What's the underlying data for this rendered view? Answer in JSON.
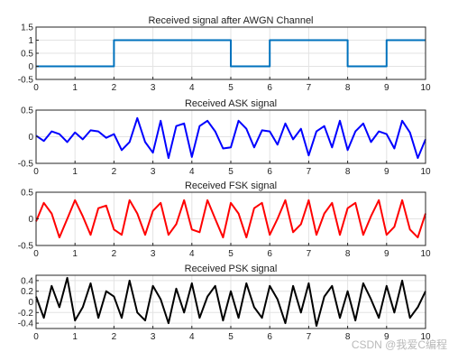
{
  "watermark": "CSDN @我爱C编程",
  "chart_data": [
    {
      "type": "line",
      "title": "Received signal after AWGN Channel",
      "xlim": [
        0,
        10
      ],
      "ylim": [
        -0.5,
        1.5
      ],
      "xticks": [
        "0",
        "1",
        "2",
        "3",
        "4",
        "5",
        "6",
        "7",
        "8",
        "9",
        "10"
      ],
      "yticks": [
        "-0.5",
        "0",
        "0.5",
        "1",
        "1.5"
      ],
      "grid": true,
      "series": [
        {
          "color": "#0072BD",
          "x": [
            0,
            2,
            2,
            5,
            5,
            6,
            6,
            8,
            8,
            9,
            9,
            10
          ],
          "y": [
            0,
            0,
            1,
            1,
            0,
            0,
            1,
            1,
            0,
            0,
            1,
            1
          ]
        }
      ]
    },
    {
      "type": "line",
      "title": "Received ASK signal",
      "xlim": [
        0,
        10
      ],
      "ylim": [
        -0.5,
        0.5
      ],
      "xticks": [
        "0",
        "1",
        "2",
        "3",
        "4",
        "5",
        "6",
        "7",
        "8",
        "9",
        "10"
      ],
      "yticks": [
        "-0.5",
        "0",
        "0.5"
      ],
      "grid": true,
      "series": [
        {
          "color": "#0000FF",
          "x": [
            0,
            0.2,
            0.4,
            0.6,
            0.8,
            1,
            1.2,
            1.4,
            1.6,
            1.8,
            2,
            2.2,
            2.4,
            2.6,
            2.8,
            3,
            3.2,
            3.4,
            3.6,
            3.8,
            4,
            4.2,
            4.4,
            4.6,
            4.8,
            5,
            5.2,
            5.4,
            5.6,
            5.8,
            6,
            6.2,
            6.4,
            6.6,
            6.8,
            7,
            7.2,
            7.4,
            7.6,
            7.8,
            8,
            8.2,
            8.4,
            8.6,
            8.8,
            9,
            9.2,
            9.4,
            9.6,
            9.8,
            10
          ],
          "y": [
            0.02,
            -0.08,
            0.1,
            0.05,
            -0.1,
            0.08,
            -0.05,
            0.12,
            0.1,
            -0.02,
            0.05,
            -0.25,
            -0.1,
            0.35,
            -0.1,
            -0.3,
            0.3,
            -0.4,
            0.2,
            0.25,
            -0.38,
            0.2,
            0.3,
            0.1,
            -0.22,
            -0.2,
            0.3,
            0.15,
            -0.2,
            0.12,
            0.1,
            -0.15,
            0.25,
            -0.05,
            0.15,
            -0.35,
            0.1,
            0.2,
            -0.2,
            0.3,
            -0.25,
            0.1,
            0.25,
            -0.1,
            0.1,
            0.05,
            -0.22,
            0.3,
            0.08,
            -0.4,
            -0.05
          ]
        }
      ]
    },
    {
      "type": "line",
      "title": "Received FSK signal",
      "xlim": [
        0,
        10
      ],
      "ylim": [
        -0.5,
        0.5
      ],
      "xticks": [
        "0",
        "1",
        "2",
        "3",
        "4",
        "5",
        "6",
        "7",
        "8",
        "9",
        "10"
      ],
      "yticks": [
        "-0.5",
        "0",
        "0.5"
      ],
      "grid": true,
      "series": [
        {
          "color": "#FF0000",
          "x": [
            0,
            0.2,
            0.4,
            0.6,
            0.8,
            1,
            1.2,
            1.4,
            1.6,
            1.8,
            2,
            2.2,
            2.4,
            2.6,
            2.8,
            3,
            3.2,
            3.4,
            3.6,
            3.8,
            4,
            4.2,
            4.4,
            4.6,
            4.8,
            5,
            5.2,
            5.4,
            5.6,
            5.8,
            6,
            6.2,
            6.4,
            6.6,
            6.8,
            7,
            7.2,
            7.4,
            7.6,
            7.8,
            8,
            8.2,
            8.4,
            8.6,
            8.8,
            9,
            9.2,
            9.4,
            9.6,
            9.8,
            10
          ],
          "y": [
            -0.05,
            0.3,
            0.1,
            -0.35,
            0.0,
            0.35,
            0.05,
            -0.3,
            0.2,
            0.25,
            -0.2,
            -0.3,
            0.35,
            0.1,
            -0.3,
            0.15,
            0.3,
            -0.3,
            -0.1,
            0.35,
            -0.2,
            -0.25,
            0.35,
            0.0,
            -0.35,
            0.3,
            0.1,
            -0.35,
            0.2,
            0.3,
            -0.3,
            0.0,
            0.35,
            -0.25,
            -0.1,
            0.35,
            -0.3,
            0.1,
            0.3,
            -0.3,
            0.2,
            0.3,
            -0.3,
            0.05,
            0.35,
            -0.3,
            -0.15,
            0.35,
            -0.2,
            -0.35,
            0.1
          ]
        }
      ]
    },
    {
      "type": "line",
      "title": "Received PSK signal",
      "xlim": [
        0,
        10
      ],
      "ylim": [
        -0.5,
        0.5
      ],
      "xticks": [
        "0",
        "1",
        "2",
        "3",
        "4",
        "5",
        "6",
        "7",
        "8",
        "9",
        "10"
      ],
      "yticks": [
        "-0.4",
        "-0.2",
        "0",
        "0.2",
        "0.4"
      ],
      "grid": true,
      "series": [
        {
          "color": "#000000",
          "x": [
            0,
            0.2,
            0.4,
            0.6,
            0.8,
            1,
            1.2,
            1.4,
            1.6,
            1.8,
            2,
            2.2,
            2.4,
            2.6,
            2.8,
            3,
            3.2,
            3.4,
            3.6,
            3.8,
            4,
            4.2,
            4.4,
            4.6,
            4.8,
            5,
            5.2,
            5.4,
            5.6,
            5.8,
            6,
            6.2,
            6.4,
            6.6,
            6.8,
            7,
            7.2,
            7.4,
            7.6,
            7.8,
            8,
            8.2,
            8.4,
            8.6,
            8.8,
            9,
            9.2,
            9.4,
            9.6,
            9.8,
            10
          ],
          "y": [
            0.1,
            -0.3,
            0.3,
            -0.1,
            0.45,
            -0.35,
            -0.1,
            0.35,
            -0.3,
            0.2,
            0.1,
            -0.3,
            0.4,
            -0.2,
            -0.35,
            0.3,
            0.05,
            -0.4,
            0.25,
            -0.2,
            0.35,
            -0.3,
            0.1,
            0.3,
            -0.35,
            0.2,
            -0.3,
            0.35,
            -0.1,
            -0.3,
            0.3,
            0.05,
            -0.4,
            0.3,
            -0.2,
            0.35,
            -0.45,
            0.1,
            0.3,
            -0.3,
            0.2,
            -0.35,
            0.35,
            0.05,
            -0.3,
            0.3,
            -0.2,
            0.4,
            -0.3,
            -0.1,
            0.2
          ]
        }
      ]
    }
  ]
}
